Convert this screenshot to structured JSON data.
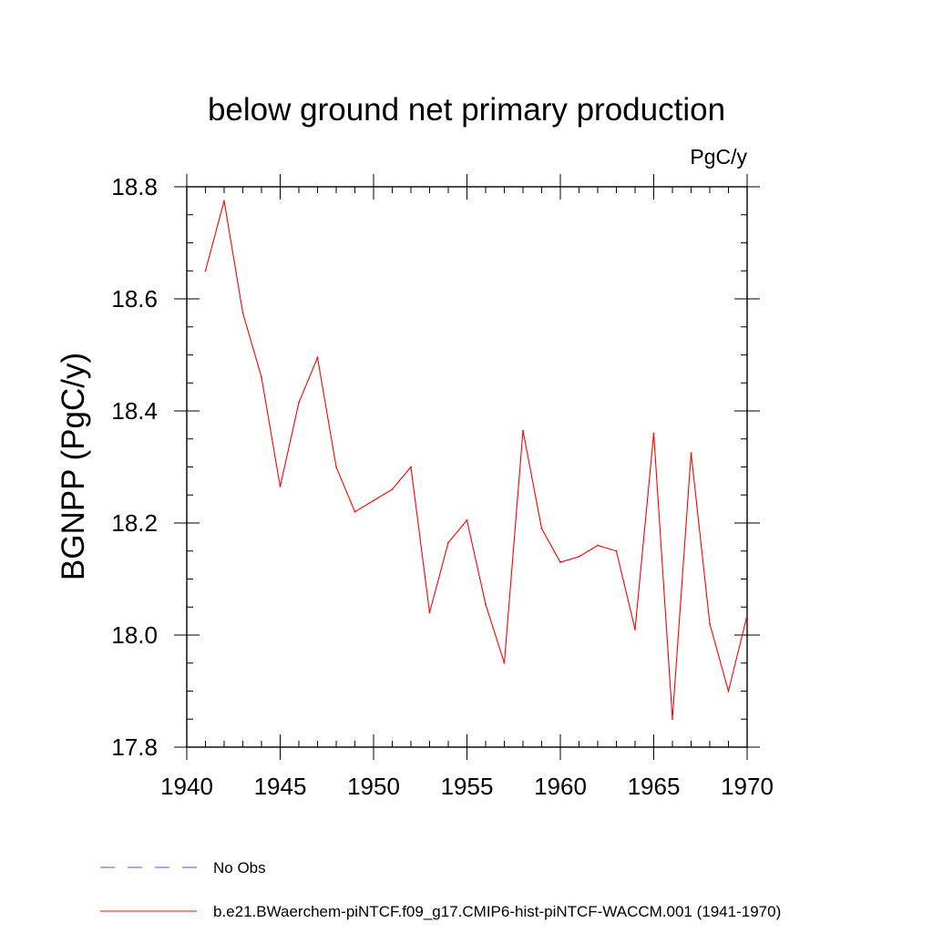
{
  "chart_data": {
    "type": "line",
    "title": "below ground net primary production",
    "units_label": "PgC/y",
    "ylabel": "BGNPP  (PgC/y)",
    "xlabel": "",
    "xlim": [
      1940,
      1970
    ],
    "ylim": [
      17.8,
      18.8
    ],
    "x_ticks": [
      1940,
      1945,
      1950,
      1955,
      1960,
      1965,
      1970
    ],
    "x_tick_labels": [
      "1940",
      "1945",
      "1950",
      "1955",
      "1960",
      "1965",
      "1970"
    ],
    "y_ticks": [
      17.8,
      18.0,
      18.2,
      18.4,
      18.6,
      18.8
    ],
    "y_tick_labels": [
      "17.8",
      "18.0",
      "18.2",
      "18.4",
      "18.6",
      "18.8"
    ],
    "grid": false,
    "legend_position": "bottom",
    "series": [
      {
        "name": "b.e21.BWaerchem-piNTCF.f09_g17.CMIP6-hist-piNTCF-WACCM.001 (1941-1970)",
        "color": "#ff0000",
        "line_style": "solid",
        "x": [
          1941,
          1942,
          1943,
          1944,
          1945,
          1946,
          1947,
          1948,
          1949,
          1950,
          1951,
          1952,
          1953,
          1954,
          1955,
          1956,
          1957,
          1958,
          1959,
          1960,
          1961,
          1962,
          1963,
          1964,
          1965,
          1966,
          1967,
          1968,
          1969,
          1970
        ],
        "values": [
          18.65,
          18.775,
          18.575,
          18.46,
          18.265,
          18.415,
          18.495,
          18.3,
          18.22,
          18.24,
          18.26,
          18.3,
          18.04,
          18.165,
          18.205,
          18.055,
          17.95,
          18.365,
          18.19,
          18.13,
          18.14,
          18.16,
          18.15,
          18.01,
          18.36,
          17.85,
          18.325,
          18.02,
          17.9,
          18.035
        ]
      }
    ],
    "legend": [
      {
        "label": "No Obs",
        "color": "#5a4fcf",
        "line_style": "dashed"
      },
      {
        "label": "b.e21.BWaerchem-piNTCF.f09_g17.CMIP6-hist-piNTCF-WACCM.001 (1941-1970)",
        "color": "#ff0000",
        "line_style": "solid"
      }
    ]
  }
}
